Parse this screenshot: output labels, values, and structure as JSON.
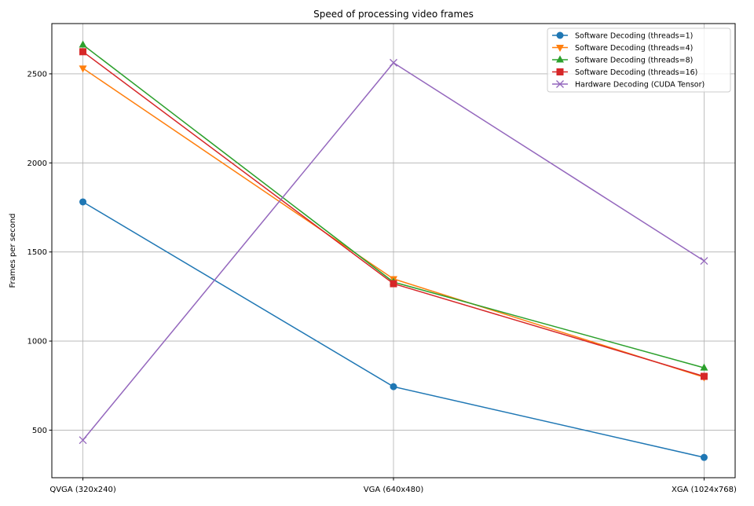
{
  "chart_data": {
    "type": "line",
    "title": "Speed of processing video frames",
    "xlabel": "",
    "ylabel": "Frames per second",
    "categories": [
      "QVGA (320x240)",
      "VGA (640x480)",
      "XGA (1024x768)"
    ],
    "xlim": [
      -0.1,
      2.1
    ],
    "ylim": [
      233,
      2782
    ],
    "yticks": [
      500,
      1000,
      1500,
      2000,
      2500
    ],
    "grid": true,
    "legend_position": "top-right",
    "series": [
      {
        "name": "Software Decoding (threads=1)",
        "color": "#1f77b4",
        "marker": "circle",
        "values": [
          1781,
          744,
          347
        ]
      },
      {
        "name": "Software Decoding (threads=4)",
        "color": "#ff7f0e",
        "marker": "triangle-down",
        "values": [
          2531,
          1349,
          797
        ]
      },
      {
        "name": "Software Decoding (threads=8)",
        "color": "#2ca02c",
        "marker": "triangle-up",
        "values": [
          2663,
          1331,
          850
        ]
      },
      {
        "name": "Software Decoding (threads=16)",
        "color": "#d62728",
        "marker": "square",
        "values": [
          2624,
          1322,
          802
        ]
      },
      {
        "name": "Hardware Decoding (CUDA Tensor)",
        "color": "#9467bd",
        "marker": "x",
        "values": [
          444,
          2562,
          1450
        ]
      }
    ]
  }
}
